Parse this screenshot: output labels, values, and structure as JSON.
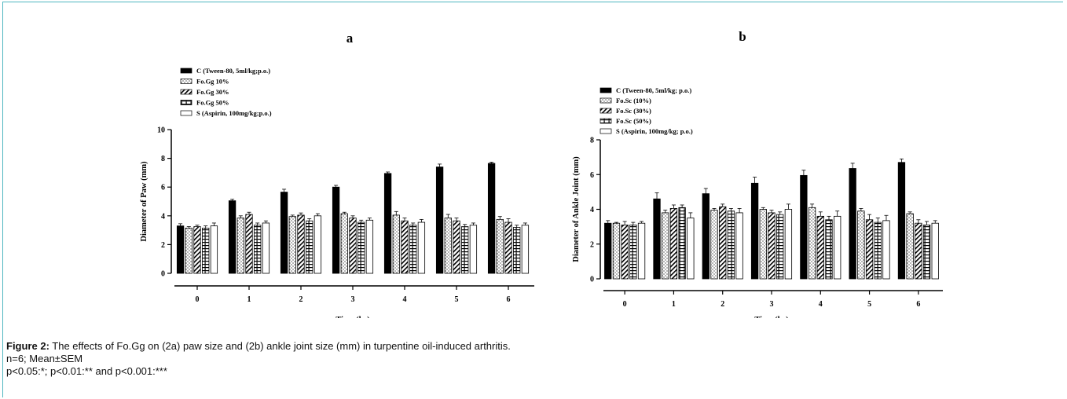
{
  "figure": {
    "caption_label": "Figure 2:",
    "caption_text": " The effects of Fo.Gg on (2a) paw size and (2b) ankle joint size (mm) in turpentine oil-induced arthritis.",
    "note_n": "n=6; Mean±SEM",
    "note_p": "p<0.05:*; p<0.01:** and p<0.001:***"
  },
  "colors": {
    "frame": "#4fb5c0",
    "bar_fill_solid": "#000000",
    "bar_outline": "#000000"
  },
  "chart_data": [
    {
      "id": "a",
      "type": "bar",
      "title": "a",
      "xlabel": "Time (hr)",
      "ylabel": "Diameter of Paw (mm)",
      "categories": [
        "0",
        "1",
        "2",
        "3",
        "4",
        "5",
        "6"
      ],
      "ylim": [
        0,
        10
      ],
      "yticks": [
        "0",
        "2",
        "4",
        "6",
        "8",
        "10"
      ],
      "legend_position": "top-left",
      "series": [
        {
          "name": "C (Tween-80, 5ml/kg;p.o.)",
          "pattern": "solid",
          "values": [
            3.3,
            5.05,
            5.65,
            6.0,
            6.95,
            7.4,
            7.65
          ],
          "errors": [
            0.15,
            0.1,
            0.2,
            0.12,
            0.1,
            0.2,
            0.08
          ]
        },
        {
          "name": "Fo.Gg 10%",
          "pattern": "dots",
          "values": [
            3.15,
            3.85,
            3.95,
            4.15,
            4.05,
            3.85,
            3.75
          ],
          "errors": [
            0.1,
            0.15,
            0.1,
            0.1,
            0.25,
            0.25,
            0.2
          ]
        },
        {
          "name": "Fo.Gg 30%",
          "pattern": "diagonal",
          "values": [
            3.25,
            4.1,
            4.05,
            3.85,
            3.65,
            3.65,
            3.55
          ],
          "errors": [
            0.1,
            0.15,
            0.15,
            0.15,
            0.2,
            0.2,
            0.25
          ]
        },
        {
          "name": "Fo.Gg 50%",
          "pattern": "brick",
          "values": [
            3.15,
            3.35,
            3.65,
            3.55,
            3.35,
            3.25,
            3.2
          ],
          "errors": [
            0.15,
            0.15,
            0.15,
            0.15,
            0.15,
            0.15,
            0.15
          ]
        },
        {
          "name": "S (Aspirin, 100mg/kg;p.o.)",
          "pattern": "empty",
          "values": [
            3.3,
            3.5,
            4.0,
            3.7,
            3.55,
            3.35,
            3.35
          ],
          "errors": [
            0.2,
            0.15,
            0.15,
            0.15,
            0.2,
            0.15,
            0.15
          ]
        }
      ]
    },
    {
      "id": "b",
      "type": "bar",
      "title": "b",
      "xlabel": "Time (hr)",
      "ylabel": "Diameter of Ankle Joint (mm)",
      "categories": [
        "0",
        "1",
        "2",
        "3",
        "4",
        "5",
        "6"
      ],
      "ylim": [
        0,
        8
      ],
      "yticks": [
        "0",
        "2",
        "4",
        "6",
        "8"
      ],
      "legend_position": "top-left",
      "series": [
        {
          "name": "C (Tween-80, 5ml/kg; p.o.)",
          "pattern": "solid",
          "values": [
            3.2,
            4.6,
            4.9,
            5.5,
            5.95,
            6.35,
            6.7
          ],
          "errors": [
            0.15,
            0.35,
            0.3,
            0.35,
            0.3,
            0.3,
            0.2
          ]
        },
        {
          "name": "Fo.Sc (10%)",
          "pattern": "dots",
          "values": [
            3.2,
            3.8,
            3.95,
            4.0,
            4.1,
            3.9,
            3.75
          ],
          "errors": [
            0.05,
            0.15,
            0.1,
            0.1,
            0.2,
            0.15,
            0.1
          ]
        },
        {
          "name": "Fo.Sc (30%)",
          "pattern": "diagonal",
          "values": [
            3.1,
            4.05,
            4.15,
            3.8,
            3.6,
            3.4,
            3.2
          ],
          "errors": [
            0.2,
            0.2,
            0.15,
            0.15,
            0.25,
            0.3,
            0.2
          ]
        },
        {
          "name": "Fo.Sc (50%)",
          "pattern": "brick",
          "values": [
            3.1,
            4.1,
            3.9,
            3.7,
            3.4,
            3.25,
            3.1
          ],
          "errors": [
            0.15,
            0.15,
            0.15,
            0.15,
            0.2,
            0.25,
            0.2
          ]
        },
        {
          "name": "S (Aspirin, 100mg/kg; p.o.)",
          "pattern": "empty",
          "values": [
            3.2,
            3.5,
            3.8,
            4.0,
            3.6,
            3.35,
            3.2
          ],
          "errors": [
            0.1,
            0.3,
            0.25,
            0.3,
            0.3,
            0.3,
            0.15
          ]
        }
      ]
    }
  ]
}
